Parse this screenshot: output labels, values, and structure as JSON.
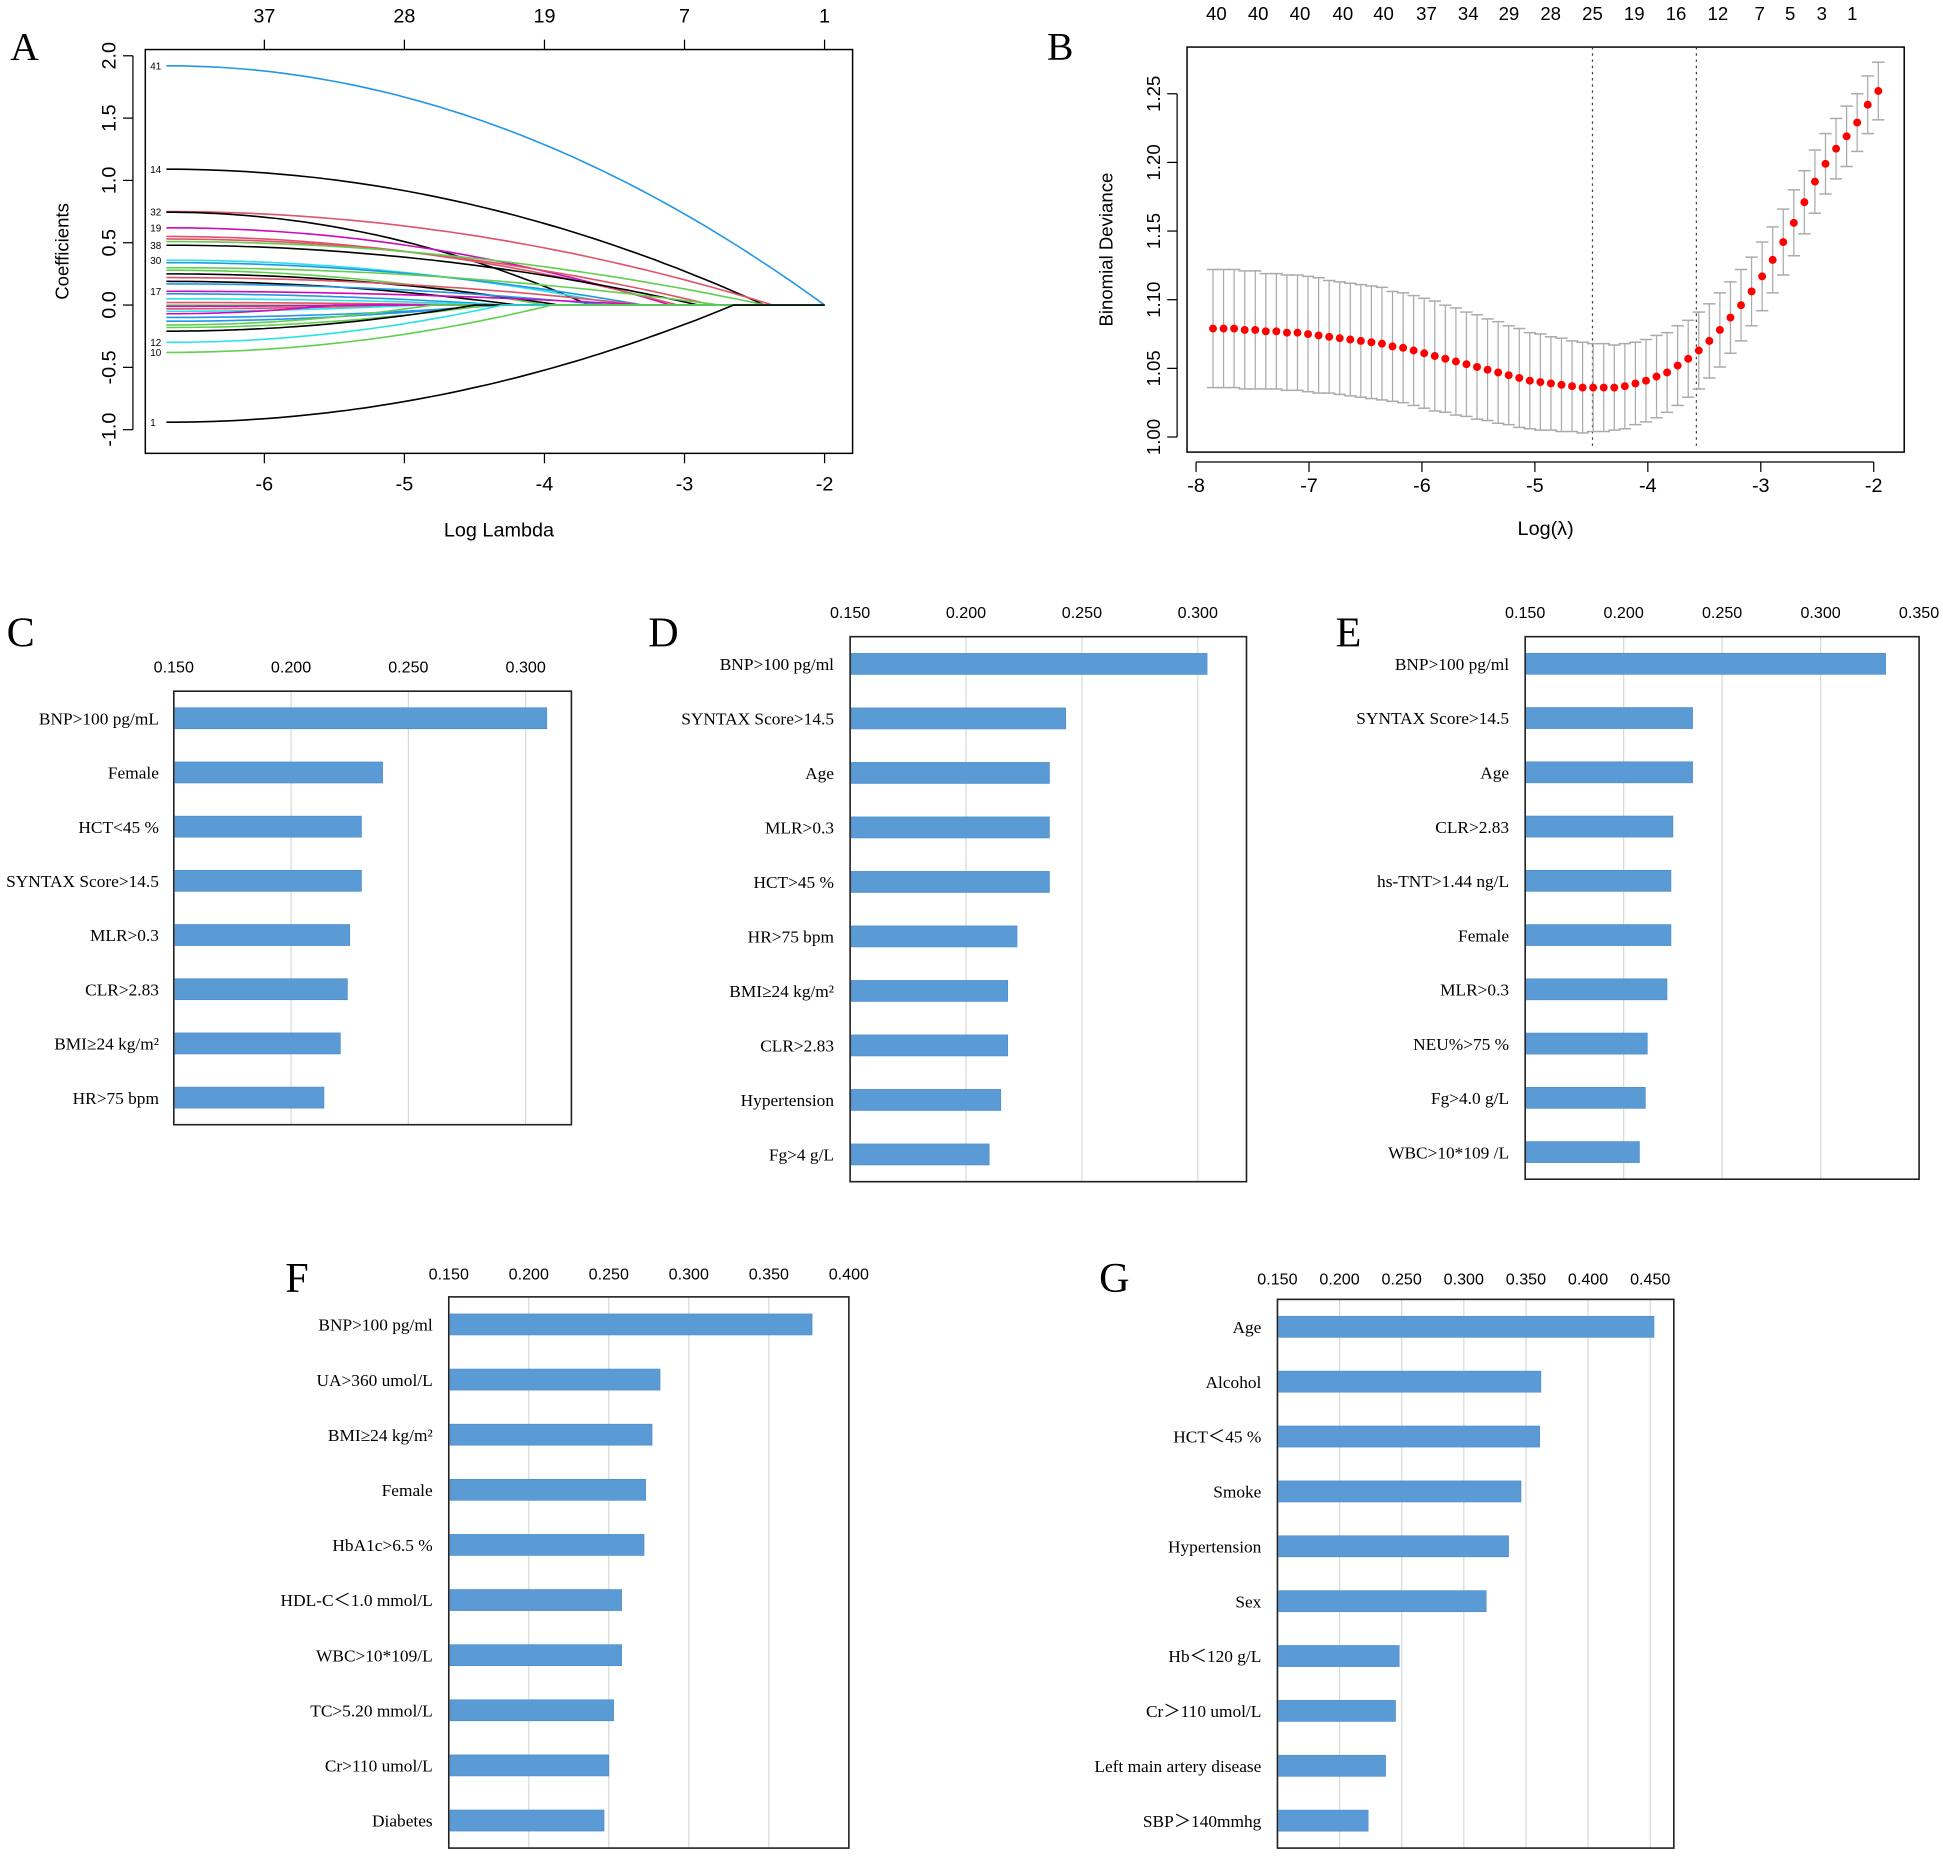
{
  "chart_data": [
    {
      "panel": "A",
      "type": "line",
      "xlabel": "Log Lambda",
      "ylabel": "Coefficients",
      "xlim": [
        -6.85,
        -1.8
      ],
      "ylim": [
        -1.19,
        2.05
      ],
      "xticks": [
        -6,
        -5,
        -4,
        -3,
        -2
      ],
      "yticks": [
        -1.0,
        -0.5,
        0.0,
        0.5,
        1.0,
        1.5,
        2.0
      ],
      "top_axis": {
        "ticks": [
          -6,
          -5,
          -4,
          -3,
          -2
        ],
        "labels": [
          "37",
          "28",
          "19",
          "7",
          "1"
        ]
      },
      "path_start_x": -6.7,
      "colors": {
        "black": "#000000",
        "red": "#DF536B",
        "green": "#61D04F",
        "blue": "#2297E6",
        "cyan": "#28E2E5",
        "magenta": "#CD0BBC"
      },
      "paths": [
        {
          "label": "41",
          "start": 1.92,
          "zero_at": -2.0,
          "color": "blue"
        },
        {
          "label": "14",
          "start": 1.09,
          "zero_at": -2.43,
          "color": "black"
        },
        {
          "label": "32",
          "start": 0.75,
          "zero_at": -2.37,
          "color": "red"
        },
        {
          "label": "",
          "start": 0.745,
          "zero_at": -3.68,
          "color": "black"
        },
        {
          "label": "19",
          "start": 0.62,
          "zero_at": -3.1,
          "color": "magenta"
        },
        {
          "label": "",
          "start": 0.55,
          "zero_at": -3.05,
          "color": "red"
        },
        {
          "label": "",
          "start": 0.53,
          "zero_at": -2.8,
          "color": "red"
        },
        {
          "label": "",
          "start": 0.51,
          "zero_at": -2.42,
          "color": "green"
        },
        {
          "label": "38",
          "start": 0.48,
          "zero_at": -2.9,
          "color": "black"
        },
        {
          "label": "30",
          "start": 0.36,
          "zero_at": -3.45,
          "color": "cyan"
        },
        {
          "label": "",
          "start": 0.34,
          "zero_at": -3.3,
          "color": "blue"
        },
        {
          "label": "",
          "start": 0.3,
          "zero_at": -2.75,
          "color": "green"
        },
        {
          "label": "",
          "start": 0.28,
          "zero_at": -4.0,
          "color": "green"
        },
        {
          "label": "",
          "start": 0.25,
          "zero_at": -3.9,
          "color": "black"
        },
        {
          "label": "",
          "start": 0.22,
          "zero_at": -3.3,
          "color": "red"
        },
        {
          "label": "",
          "start": 0.19,
          "zero_at": -4.2,
          "color": "black"
        },
        {
          "label": "",
          "start": 0.17,
          "zero_at": -3.55,
          "color": "blue"
        },
        {
          "label": "17",
          "start": 0.11,
          "zero_at": -3.3,
          "color": "magenta"
        },
        {
          "label": "",
          "start": 0.09,
          "zero_at": -4.3,
          "color": "blue"
        },
        {
          "label": "",
          "start": 0.05,
          "zero_at": -4.3,
          "color": "cyan"
        },
        {
          "label": "",
          "start": 0.02,
          "zero_at": -4.6,
          "color": "red"
        },
        {
          "label": "",
          "start": -0.01,
          "zero_at": -5.2,
          "color": "magenta"
        },
        {
          "label": "",
          "start": -0.03,
          "zero_at": -5.0,
          "color": "red"
        },
        {
          "label": "",
          "start": -0.05,
          "zero_at": -4.9,
          "color": "cyan"
        },
        {
          "label": "",
          "start": -0.07,
          "zero_at": -5.5,
          "color": "magenta"
        },
        {
          "label": "",
          "start": -0.1,
          "zero_at": -4.3,
          "color": "blue"
        },
        {
          "label": "",
          "start": -0.13,
          "zero_at": -4.4,
          "color": "blue"
        },
        {
          "label": "",
          "start": -0.16,
          "zero_at": -4.8,
          "color": "green"
        },
        {
          "label": "",
          "start": -0.18,
          "zero_at": -4.4,
          "color": "green"
        },
        {
          "label": "",
          "start": -0.21,
          "zero_at": -4.5,
          "color": "black"
        },
        {
          "label": "12",
          "start": -0.3,
          "zero_at": -4.3,
          "color": "cyan"
        },
        {
          "label": "10",
          "start": -0.38,
          "zero_at": -3.95,
          "color": "green"
        },
        {
          "label": "1",
          "start": -0.94,
          "zero_at": -2.65,
          "color": "black"
        }
      ]
    },
    {
      "panel": "B",
      "type": "scatter",
      "xlabel": "Log(λ)",
      "ylabel": "Binomial Deviance",
      "xlim": [
        -8.08,
        -1.73
      ],
      "ylim": [
        0.989,
        1.284
      ],
      "xticks": [
        -8,
        -7,
        -6,
        -5,
        -4,
        -3,
        -2
      ],
      "yticks": [
        1.0,
        1.05,
        1.1,
        1.15,
        1.2,
        1.25
      ],
      "vlines": [
        -4.49,
        -3.57
      ],
      "top_axis": {
        "ticks": [
          -7.82,
          -7.45,
          -7.08,
          -6.7,
          -6.34,
          -5.96,
          -5.59,
          -5.23,
          -4.86,
          -4.49,
          -4.12,
          -3.75,
          -3.38,
          -3.01,
          -2.74,
          -2.46,
          -2.19
        ],
        "labels": [
          "40",
          "40",
          "40",
          "40",
          "40",
          "37",
          "34",
          "29",
          "28",
          "25",
          "19",
          "16",
          "12",
          "7",
          "5",
          "3",
          "1"
        ]
      },
      "point_color": "#FF0000",
      "errorbar_color": "#AAAAAA",
      "x_start": -7.85,
      "x_step": 0.0935,
      "mean": [
        1.079,
        1.079,
        1.079,
        1.078,
        1.078,
        1.077,
        1.077,
        1.076,
        1.076,
        1.075,
        1.074,
        1.073,
        1.072,
        1.071,
        1.07,
        1.069,
        1.068,
        1.066,
        1.065,
        1.063,
        1.061,
        1.059,
        1.057,
        1.055,
        1.053,
        1.051,
        1.049,
        1.047,
        1.045,
        1.043,
        1.041,
        1.04,
        1.039,
        1.038,
        1.037,
        1.036,
        1.036,
        1.036,
        1.036,
        1.037,
        1.039,
        1.041,
        1.044,
        1.047,
        1.052,
        1.057,
        1.063,
        1.07,
        1.078,
        1.087,
        1.096,
        1.106,
        1.117,
        1.129,
        1.142,
        1.156,
        1.171,
        1.186,
        1.199,
        1.21,
        1.219,
        1.229,
        1.242,
        1.252
      ],
      "se": [
        0.043,
        0.043,
        0.043,
        0.043,
        0.043,
        0.042,
        0.042,
        0.042,
        0.042,
        0.042,
        0.042,
        0.041,
        0.041,
        0.041,
        0.041,
        0.041,
        0.041,
        0.04,
        0.04,
        0.04,
        0.04,
        0.04,
        0.039,
        0.039,
        0.038,
        0.038,
        0.037,
        0.037,
        0.036,
        0.036,
        0.035,
        0.035,
        0.034,
        0.034,
        0.033,
        0.033,
        0.032,
        0.032,
        0.031,
        0.031,
        0.03,
        0.03,
        0.03,
        0.029,
        0.029,
        0.028,
        0.028,
        0.027,
        0.027,
        0.026,
        0.026,
        0.025,
        0.025,
        0.024,
        0.024,
        0.024,
        0.023,
        0.023,
        0.022,
        0.022,
        0.022,
        0.021,
        0.021,
        0.021
      ]
    },
    {
      "panel": "C",
      "type": "bar",
      "orientation": "horizontal",
      "bar_color": "#5B9BD5",
      "xlim": [
        0.15,
        0.3195
      ],
      "xticks": [
        "0.150",
        "0.200",
        "0.250",
        "0.300"
      ],
      "categories": [
        "BNP>100 pg/mL",
        "Female",
        "HCT<45 %",
        "SYNTAX Score>14.5",
        "MLR>0.3",
        "CLR>2.83",
        "BMI≥24 kg/m²",
        "HR>75 bpm"
      ],
      "values": [
        0.309,
        0.239,
        0.23,
        0.23,
        0.225,
        0.224,
        0.221,
        0.214
      ]
    },
    {
      "panel": "D",
      "type": "bar",
      "orientation": "horizontal",
      "bar_color": "#5B9BD5",
      "xlim": [
        0.15,
        0.321
      ],
      "xticks": [
        "0.150",
        "0.200",
        "0.250",
        "0.300"
      ],
      "categories": [
        "BNP>100 pg/ml",
        "SYNTAX Score>14.5",
        "Age",
        "MLR>0.3",
        "HCT>45 %",
        "HR>75 bpm",
        "BMI≥24 kg/m²",
        "CLR>2.83",
        "Hypertension",
        "Fg>4 g/L"
      ],
      "values": [
        0.304,
        0.243,
        0.236,
        0.236,
        0.236,
        0.222,
        0.218,
        0.218,
        0.215,
        0.21
      ]
    },
    {
      "panel": "E",
      "type": "bar",
      "orientation": "horizontal",
      "bar_color": "#5B9BD5",
      "xlim": [
        0.15,
        0.35
      ],
      "xticks": [
        "0.150",
        "0.200",
        "0.250",
        "0.300",
        "0.350"
      ],
      "categories": [
        "BNP>100 pg/ml",
        "SYNTAX Score>14.5",
        "Age",
        "CLR>2.83",
        "hs-TNT>1.44 ng/L",
        "Female",
        "MLR>0.3",
        "NEU%>75 %",
        "Fg>4.0 g/L",
        "WBC>10*109 /L"
      ],
      "values": [
        0.333,
        0.235,
        0.235,
        0.225,
        0.224,
        0.224,
        0.222,
        0.212,
        0.211,
        0.208
      ]
    },
    {
      "panel": "F",
      "type": "bar",
      "orientation": "horizontal",
      "bar_color": "#5B9BD5",
      "xlim": [
        0.15,
        0.4
      ],
      "xticks": [
        "0.150",
        "0.200",
        "0.250",
        "0.300",
        "0.350",
        "0.400"
      ],
      "categories": [
        "BNP>100 pg/ml",
        "UA>360 umol/L",
        "BMI≥24 kg/m²",
        "Female",
        "HbA1c>6.5 %",
        "HDL-C＜1.0 mmol/L",
        "WBC>10*109/L",
        "TC>5.20 mmol/L",
        "Cr>110 umol/L",
        "Diabetes"
      ],
      "values": [
        0.377,
        0.282,
        0.277,
        0.273,
        0.272,
        0.258,
        0.258,
        0.253,
        0.25,
        0.247
      ]
    },
    {
      "panel": "G",
      "type": "bar",
      "orientation": "horizontal",
      "bar_color": "#5B9BD5",
      "xlim": [
        0.15,
        0.469
      ],
      "xticks": [
        "0.150",
        "0.200",
        "0.250",
        "0.300",
        "0.350",
        "0.400",
        "0.450"
      ],
      "categories": [
        "Age",
        "Alcohol",
        "HCT＜45 %",
        "Smoke",
        "Hypertension",
        "Sex",
        "Hb＜120 g/L",
        "Cr＞110 umol/L",
        "Left main artery disease",
        "SBP＞140mmhg"
      ],
      "values": [
        0.453,
        0.362,
        0.361,
        0.346,
        0.336,
        0.318,
        0.248,
        0.245,
        0.237,
        0.223
      ]
    }
  ]
}
